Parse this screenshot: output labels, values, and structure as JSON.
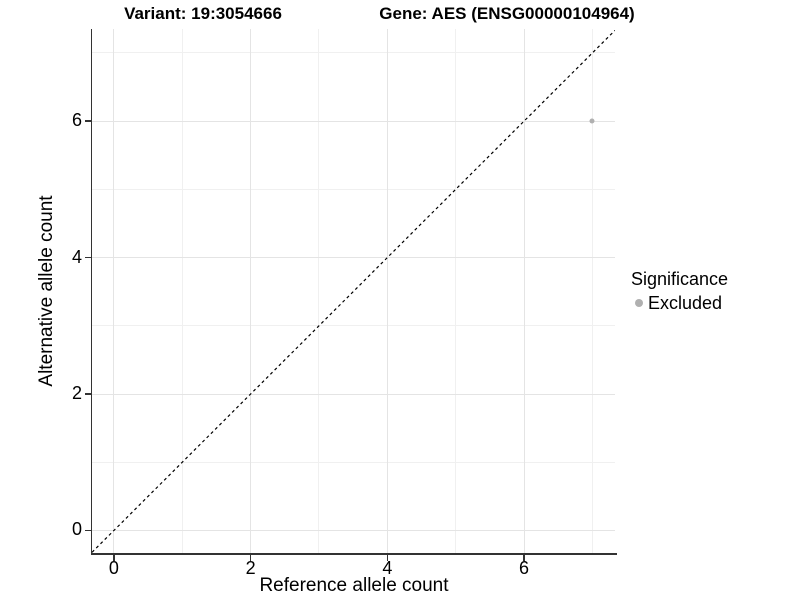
{
  "chart_data": {
    "type": "scatter",
    "title_left": "Variant: 19:3054666",
    "title_right": "Gene: AES (ENSG00000104964)",
    "xlabel": "Reference allele count",
    "ylabel": "Alternative allele count",
    "xlim": [
      -0.32,
      7.33
    ],
    "ylim": [
      -0.33,
      7.35
    ],
    "x_major_ticks": [
      0,
      2,
      4,
      6
    ],
    "y_major_ticks": [
      0,
      2,
      4,
      6
    ],
    "x_minor_gridlines": [
      1,
      3,
      5,
      7
    ],
    "y_minor_gridlines": [
      1,
      3,
      5,
      7
    ],
    "grid": "major+minor",
    "points": [
      {
        "x": 7,
        "y": 6,
        "series": "Excluded"
      }
    ],
    "reference_line": {
      "type": "identity",
      "slope": 1,
      "intercept": 0,
      "style": "dashed"
    },
    "legend": {
      "position": "right",
      "title": "Significance",
      "items": [
        {
          "label": "Excluded",
          "marker": "circle",
          "color": "#b0b0b0"
        }
      ]
    },
    "colors": {
      "background": "#ffffff",
      "major_grid": "#e4e4e4",
      "minor_grid": "#f0f0f0",
      "axis_line": "#333333",
      "text": "#000000",
      "point": "#b0b0b0",
      "reference_line": "#000000"
    }
  }
}
